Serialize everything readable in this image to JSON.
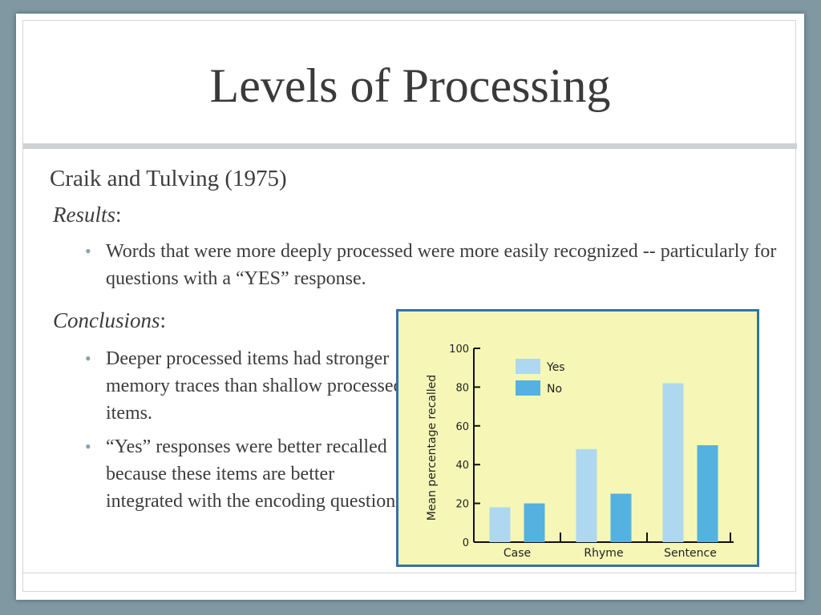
{
  "slide": {
    "title": "Levels of Processing",
    "study": "Craik and Tulving (1975)",
    "results_heading": "Results",
    "results_bullets": [
      "Words that were more deeply processed were more easily recognized -- particularly for questions with a “YES” response."
    ],
    "conclusions_heading": "Conclusions",
    "conclusions_bullets": [
      "Deeper processed items had stronger memory traces than shallow processed items.",
      "“Yes” responses were better recalled because these items are better integrated with the encoding question."
    ],
    "colon": ":"
  },
  "chart_data": {
    "type": "bar",
    "categories": [
      "Case",
      "Rhyme",
      "Sentence"
    ],
    "series": [
      {
        "name": "Yes",
        "values": [
          18,
          48,
          82
        ],
        "color": "#aed8ef"
      },
      {
        "name": "No",
        "values": [
          20,
          25,
          50
        ],
        "color": "#55b1e0"
      }
    ],
    "ylabel": "Mean percentage recalled",
    "xlabel": "",
    "ylim": [
      0,
      100
    ],
    "yticks": [
      0,
      20,
      40,
      60,
      80,
      100
    ],
    "legend": "top-center",
    "grid": false,
    "background": "#f6f7b6"
  }
}
